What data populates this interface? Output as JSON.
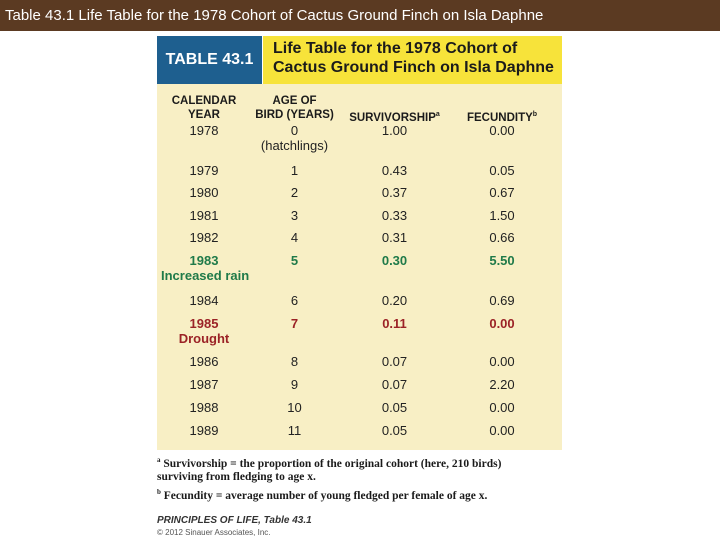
{
  "slide": {
    "title": "Table 43.1  Life Table for the 1978 Cohort of Cactus Ground Finch on Isla Daphne"
  },
  "table": {
    "label": "TABLE 43.1",
    "title_line1": "Life Table for the 1978 Cohort of",
    "title_line2": "Cactus Ground Finch on Isla Daphne",
    "headers": {
      "year_line1": "CALENDAR",
      "year_line2": "YEAR",
      "age_line1": "AGE OF",
      "age_line2": "BIRD (YEARS)",
      "survivorship": "SURVIVORSHIP",
      "survivorship_mark": "a",
      "fecundity": "FECUNDITY",
      "fecundity_mark": "b"
    },
    "rows": [
      {
        "year": "1978",
        "age": "0",
        "age_note": "(hatchlings)",
        "surv": "1.00",
        "fec": "0.00"
      },
      {
        "year": "1979",
        "age": "1",
        "surv": "0.43",
        "fec": "0.05"
      },
      {
        "year": "1980",
        "age": "2",
        "surv": "0.37",
        "fec": "0.67"
      },
      {
        "year": "1981",
        "age": "3",
        "surv": "0.33",
        "fec": "1.50"
      },
      {
        "year": "1982",
        "age": "4",
        "surv": "0.31",
        "fec": "0.66"
      },
      {
        "year": "1983",
        "age": "5",
        "surv": "0.30",
        "fec": "5.50",
        "note": "Increased rain",
        "highlight": "green"
      },
      {
        "year": "1984",
        "age": "6",
        "surv": "0.20",
        "fec": "0.69"
      },
      {
        "year": "1985",
        "age": "7",
        "surv": "0.11",
        "fec": "0.00",
        "note": "Drought",
        "highlight": "red"
      },
      {
        "year": "1986",
        "age": "8",
        "surv": "0.07",
        "fec": "0.00"
      },
      {
        "year": "1987",
        "age": "9",
        "surv": "0.07",
        "fec": "2.20"
      },
      {
        "year": "1988",
        "age": "10",
        "surv": "0.05",
        "fec": "0.00"
      },
      {
        "year": "1989",
        "age": "11",
        "surv": "0.05",
        "fec": "0.00"
      }
    ],
    "footnotes": {
      "a_mark": "a",
      "a_line1": "Survivorship = the proportion of the original cohort (here, 210 birds)",
      "a_line2": "surviving from fledging to age x.",
      "b_mark": "b",
      "b_text": "Fecundity = average number of young fledged per female of age x."
    }
  },
  "credit": {
    "book": "PRINCIPLES OF LIFE, Table 43.1",
    "copyright": "© 2012 Sinauer Associates, Inc."
  },
  "colors": {
    "topbar": "#5b3a22",
    "label_bg": "#1e5f8f",
    "title_bg": "#f7e33a",
    "table_bg": "#f8efc5",
    "green": "#1f7a49",
    "red": "#9b2226"
  }
}
